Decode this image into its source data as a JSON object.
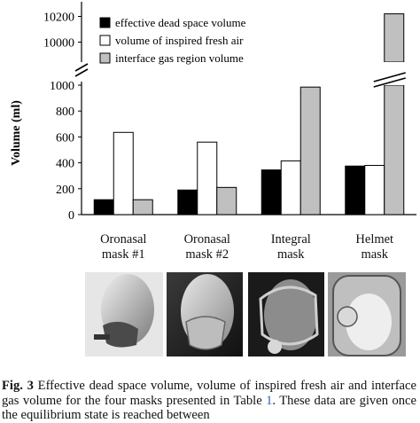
{
  "chart_data": {
    "type": "bar",
    "ylabel": "Volume (ml)",
    "categories": [
      "Oronasal\nmask #1",
      "Oronasal\nmask #2",
      "Integral\nmask",
      "Helmet\nmask"
    ],
    "series": [
      {
        "name": "effective dead space volume",
        "color": "#000000",
        "values": [
          115,
          190,
          345,
          375
        ]
      },
      {
        "name": "volume of inspired fresh air",
        "color": "#ffffff",
        "values": [
          635,
          560,
          415,
          380
        ]
      },
      {
        "name": "interface gas region volume",
        "color": "#c0c0c0",
        "values": [
          115,
          210,
          985,
          10220
        ]
      }
    ],
    "ylim_lower": [
      0,
      1000
    ],
    "yticks_lower": [
      "0",
      "200",
      "400",
      "600",
      "800",
      "1000"
    ],
    "ylim_upper": [
      9900,
      10300
    ],
    "yticks_upper": [
      "10000",
      "10200"
    ],
    "axis_break": true,
    "legend_position": "top-left"
  },
  "caption": {
    "fig": "Fig. 3",
    "text_before_ref": " Effective dead space volume, volume of inspired fresh air and interface gas volume for the four masks presented in Table ",
    "ref": "1",
    "text_after_ref": ". These data are given once the equilibrium state is reached between"
  }
}
